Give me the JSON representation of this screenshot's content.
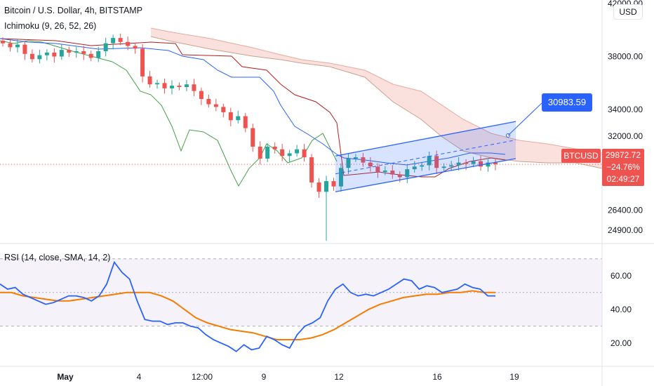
{
  "header": {
    "title": "Bitcoin / U.S. Dollar, 4h, BITSTAMP",
    "ichimoku_label": "Ichimoku (9, 26, 52, 26)",
    "rsi_label": "RSI (14, close, SMA, 14, 2)"
  },
  "currency_button": "USD",
  "price_badge": {
    "symbol": "BTCUSD",
    "price": "29872.72",
    "change": "−24.76%",
    "countdown": "02:49:27"
  },
  "target_label": "30983.59",
  "colors": {
    "up": "#26a69a",
    "down": "#ef5350",
    "channel": "#2962ff",
    "rsi": "#2962ff",
    "rsi_ma": "#f57c00",
    "tenkan": "#2962ff",
    "kijun": "#b71c1c",
    "chikou": "#43a047",
    "cloud": "#f8c9c2"
  },
  "chart_data": [
    {
      "type": "candlestick",
      "title": "Bitcoin / U.S. Dollar, 4h, BITSTAMP",
      "y_ticks": [
        "42000.00",
        "38000.00",
        "34000.00",
        "32000.00",
        "26400.00",
        "24900.00"
      ],
      "x_ticks": [
        "May",
        "4",
        "12:00",
        "9",
        "12",
        "16",
        "19"
      ],
      "ylim": [
        24000,
        42000
      ],
      "current_price": 29872.72,
      "closes": [
        39000,
        38700,
        38900,
        38200,
        37800,
        38100,
        38300,
        38000,
        38500,
        38300,
        38400,
        38200,
        37900,
        38400,
        39000,
        39400,
        39100,
        38800,
        38600,
        36500,
        35900,
        36000,
        35600,
        35800,
        35700,
        35900,
        35400,
        34800,
        34400,
        34200,
        33800,
        33200,
        33500,
        32600,
        31200,
        30300,
        31200,
        31000,
        30500,
        30700,
        31000,
        30400,
        28500,
        27800,
        28600,
        28200,
        29600,
        30300,
        30400,
        30000,
        29700,
        29300,
        29400,
        29100,
        28900,
        29500,
        29700,
        29800,
        30500,
        29600,
        29700,
        29800,
        30000,
        29900,
        30100,
        29700,
        30000,
        29872
      ],
      "channel": {
        "lower": [
          27800,
          30300
        ],
        "upper": [
          30500,
          33100
        ],
        "target": 30983.59
      },
      "ichimoku": {
        "params": [
          9,
          26,
          52,
          26
        ]
      }
    },
    {
      "type": "line",
      "title": "RSI (14, close, SMA, 14, 2)",
      "y_ticks": [
        "60.00",
        "40.00",
        "20.00"
      ],
      "bands": [
        70,
        50,
        30
      ],
      "ylim": [
        7,
        77
      ],
      "series": [
        {
          "name": "RSI",
          "values": [
            55,
            52,
            53,
            49,
            47,
            45,
            43,
            44,
            46,
            48,
            48,
            47,
            45,
            48,
            55,
            68,
            62,
            58,
            45,
            34,
            33,
            33,
            31,
            32,
            32,
            30,
            29,
            25,
            22,
            20,
            18,
            15,
            19,
            16,
            17,
            24,
            22,
            19,
            17,
            25,
            30,
            32,
            35,
            45,
            52,
            55,
            50,
            48,
            49,
            48,
            50,
            52,
            55,
            58,
            57,
            52,
            54,
            53,
            50,
            51,
            52,
            55,
            53,
            52,
            48,
            48
          ]
        },
        {
          "name": "RSI-based MA",
          "values": [
            50,
            50,
            48,
            47,
            46,
            45,
            45,
            46,
            47,
            48,
            49,
            50,
            50,
            50,
            48,
            45,
            40,
            35,
            32,
            30,
            28,
            27,
            26,
            24,
            22,
            22,
            22,
            23,
            25,
            28,
            32,
            36,
            40,
            43,
            45,
            47,
            48,
            49,
            49,
            50,
            50,
            51,
            50,
            50
          ]
        }
      ]
    }
  ]
}
